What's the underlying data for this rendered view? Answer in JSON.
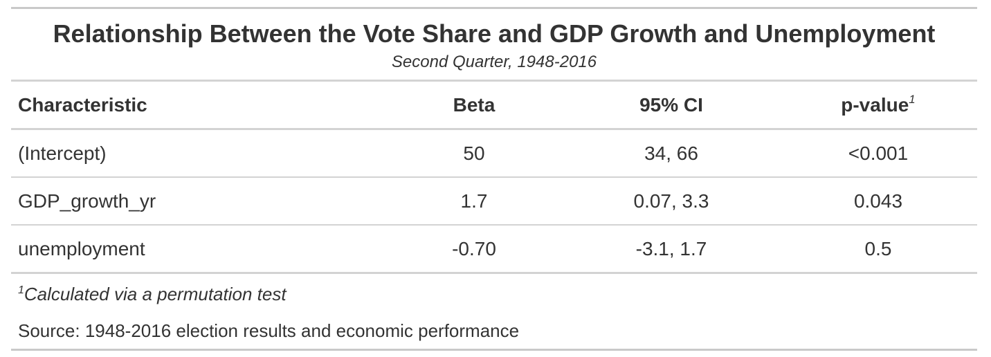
{
  "title": "Relationship Between the Vote Share and GDP Growth and Unemployment",
  "subtitle": "Second Quarter, 1948-2016",
  "columns": {
    "characteristic": "Characteristic",
    "beta": "Beta",
    "ci": "95% CI",
    "pvalue": "p-value",
    "pvalue_footnote_mark": "1"
  },
  "rows": [
    {
      "characteristic": "(Intercept)",
      "beta": "50",
      "ci": "34, 66",
      "pvalue": "<0.001"
    },
    {
      "characteristic": "GDP_growth_yr",
      "beta": "1.7",
      "ci": "0.07, 3.3",
      "pvalue": "0.043"
    },
    {
      "characteristic": "unemployment",
      "beta": "-0.70",
      "ci": "-3.1, 1.7",
      "pvalue": "0.5"
    }
  ],
  "footnote": {
    "mark": "1",
    "text": "Calculated via a permutation test"
  },
  "source": "Source: 1948-2016 election results and economic performance"
}
